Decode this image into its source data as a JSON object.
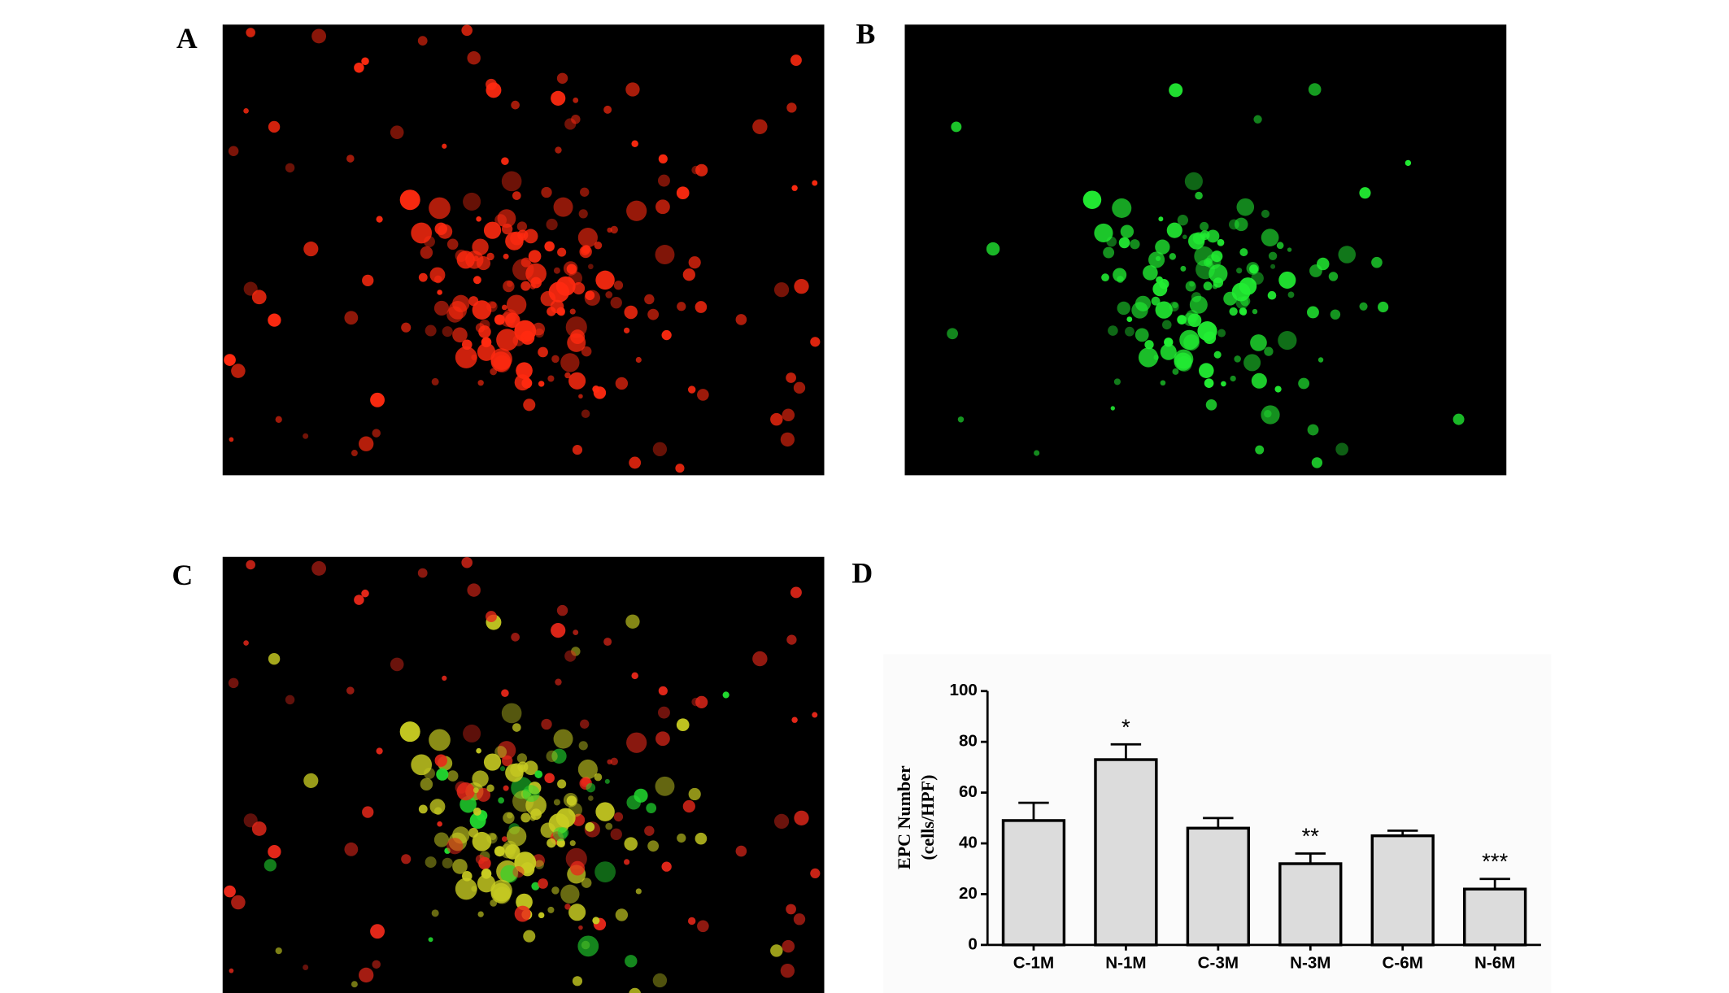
{
  "panels": {
    "a": "A",
    "b": "B",
    "c": "C",
    "d": "D"
  },
  "chart_data": {
    "type": "bar",
    "ylabel": [
      "EPC Number",
      "(cells/HPF)"
    ],
    "categories": [
      "C-1M",
      "N-1M",
      "C-3M",
      "N-3M",
      "C-6M",
      "N-6M"
    ],
    "values": [
      49,
      73,
      46,
      32,
      43,
      22
    ],
    "errors": [
      7,
      6,
      4,
      4,
      2,
      4
    ],
    "significance": [
      null,
      "*",
      null,
      "**",
      null,
      "***"
    ],
    "color": "#dcdcdc",
    "ylim": [
      0,
      100
    ],
    "yticks": [
      0,
      20,
      40,
      60,
      80,
      100
    ]
  }
}
